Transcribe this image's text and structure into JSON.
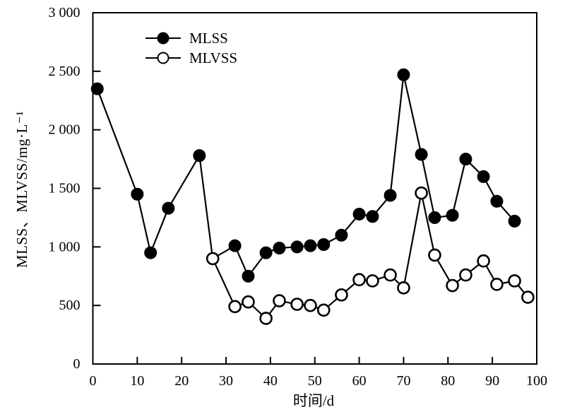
{
  "figure": {
    "background": "#ffffff",
    "foreground": "#000000",
    "y_axis_title": "MLSS、MLVSS/mg·L⁻¹",
    "x_axis_title": "时间/d"
  },
  "chart_data": {
    "type": "line",
    "title": "",
    "xlabel": "时间/d",
    "ylabel": "MLSS、MLVSS/mg·L⁻¹",
    "xlim": [
      0,
      100
    ],
    "ylim": [
      0,
      3000
    ],
    "grid": false,
    "legend_position": "inside-top-left",
    "x_ticks": [
      0,
      10,
      20,
      30,
      40,
      50,
      60,
      70,
      80,
      90,
      100
    ],
    "x_tick_labels": [
      "0",
      "10",
      "20",
      "30",
      "40",
      "50",
      "60",
      "70",
      "80",
      "90",
      "100"
    ],
    "y_ticks": [
      0,
      500,
      1000,
      1500,
      2000,
      2500,
      3000
    ],
    "y_tick_labels": [
      "0",
      "500",
      "1 000",
      "1 500",
      "2 000",
      "2 500",
      "3 000"
    ],
    "series": [
      {
        "name": "MLSS",
        "marker": "filled-circle",
        "color": "#000000",
        "points": [
          [
            1,
            2350
          ],
          [
            10,
            1450
          ],
          [
            13,
            950
          ],
          [
            17,
            1330
          ],
          [
            24,
            1780
          ],
          [
            27,
            900
          ],
          [
            32,
            1010
          ],
          [
            35,
            750
          ],
          [
            39,
            950
          ],
          [
            42,
            990
          ],
          [
            46,
            1000
          ],
          [
            49,
            1010
          ],
          [
            52,
            1020
          ],
          [
            56,
            1100
          ],
          [
            60,
            1280
          ],
          [
            63,
            1260
          ],
          [
            67,
            1440
          ],
          [
            70,
            2470
          ],
          [
            74,
            1790
          ],
          [
            77,
            1250
          ],
          [
            81,
            1270
          ],
          [
            84,
            1750
          ],
          [
            88,
            1600
          ],
          [
            91,
            1390
          ],
          [
            95,
            1220
          ]
        ]
      },
      {
        "name": "MLVSS",
        "marker": "open-circle",
        "color": "#000000",
        "points": [
          [
            27,
            900
          ],
          [
            32,
            490
          ],
          [
            35,
            530
          ],
          [
            39,
            390
          ],
          [
            42,
            540
          ],
          [
            46,
            510
          ],
          [
            49,
            500
          ],
          [
            52,
            460
          ],
          [
            56,
            590
          ],
          [
            60,
            720
          ],
          [
            63,
            710
          ],
          [
            67,
            760
          ],
          [
            70,
            650
          ],
          [
            74,
            1460
          ],
          [
            77,
            930
          ],
          [
            81,
            670
          ],
          [
            84,
            760
          ],
          [
            88,
            880
          ],
          [
            91,
            680
          ],
          [
            95,
            710
          ],
          [
            98,
            570
          ]
        ]
      }
    ]
  }
}
